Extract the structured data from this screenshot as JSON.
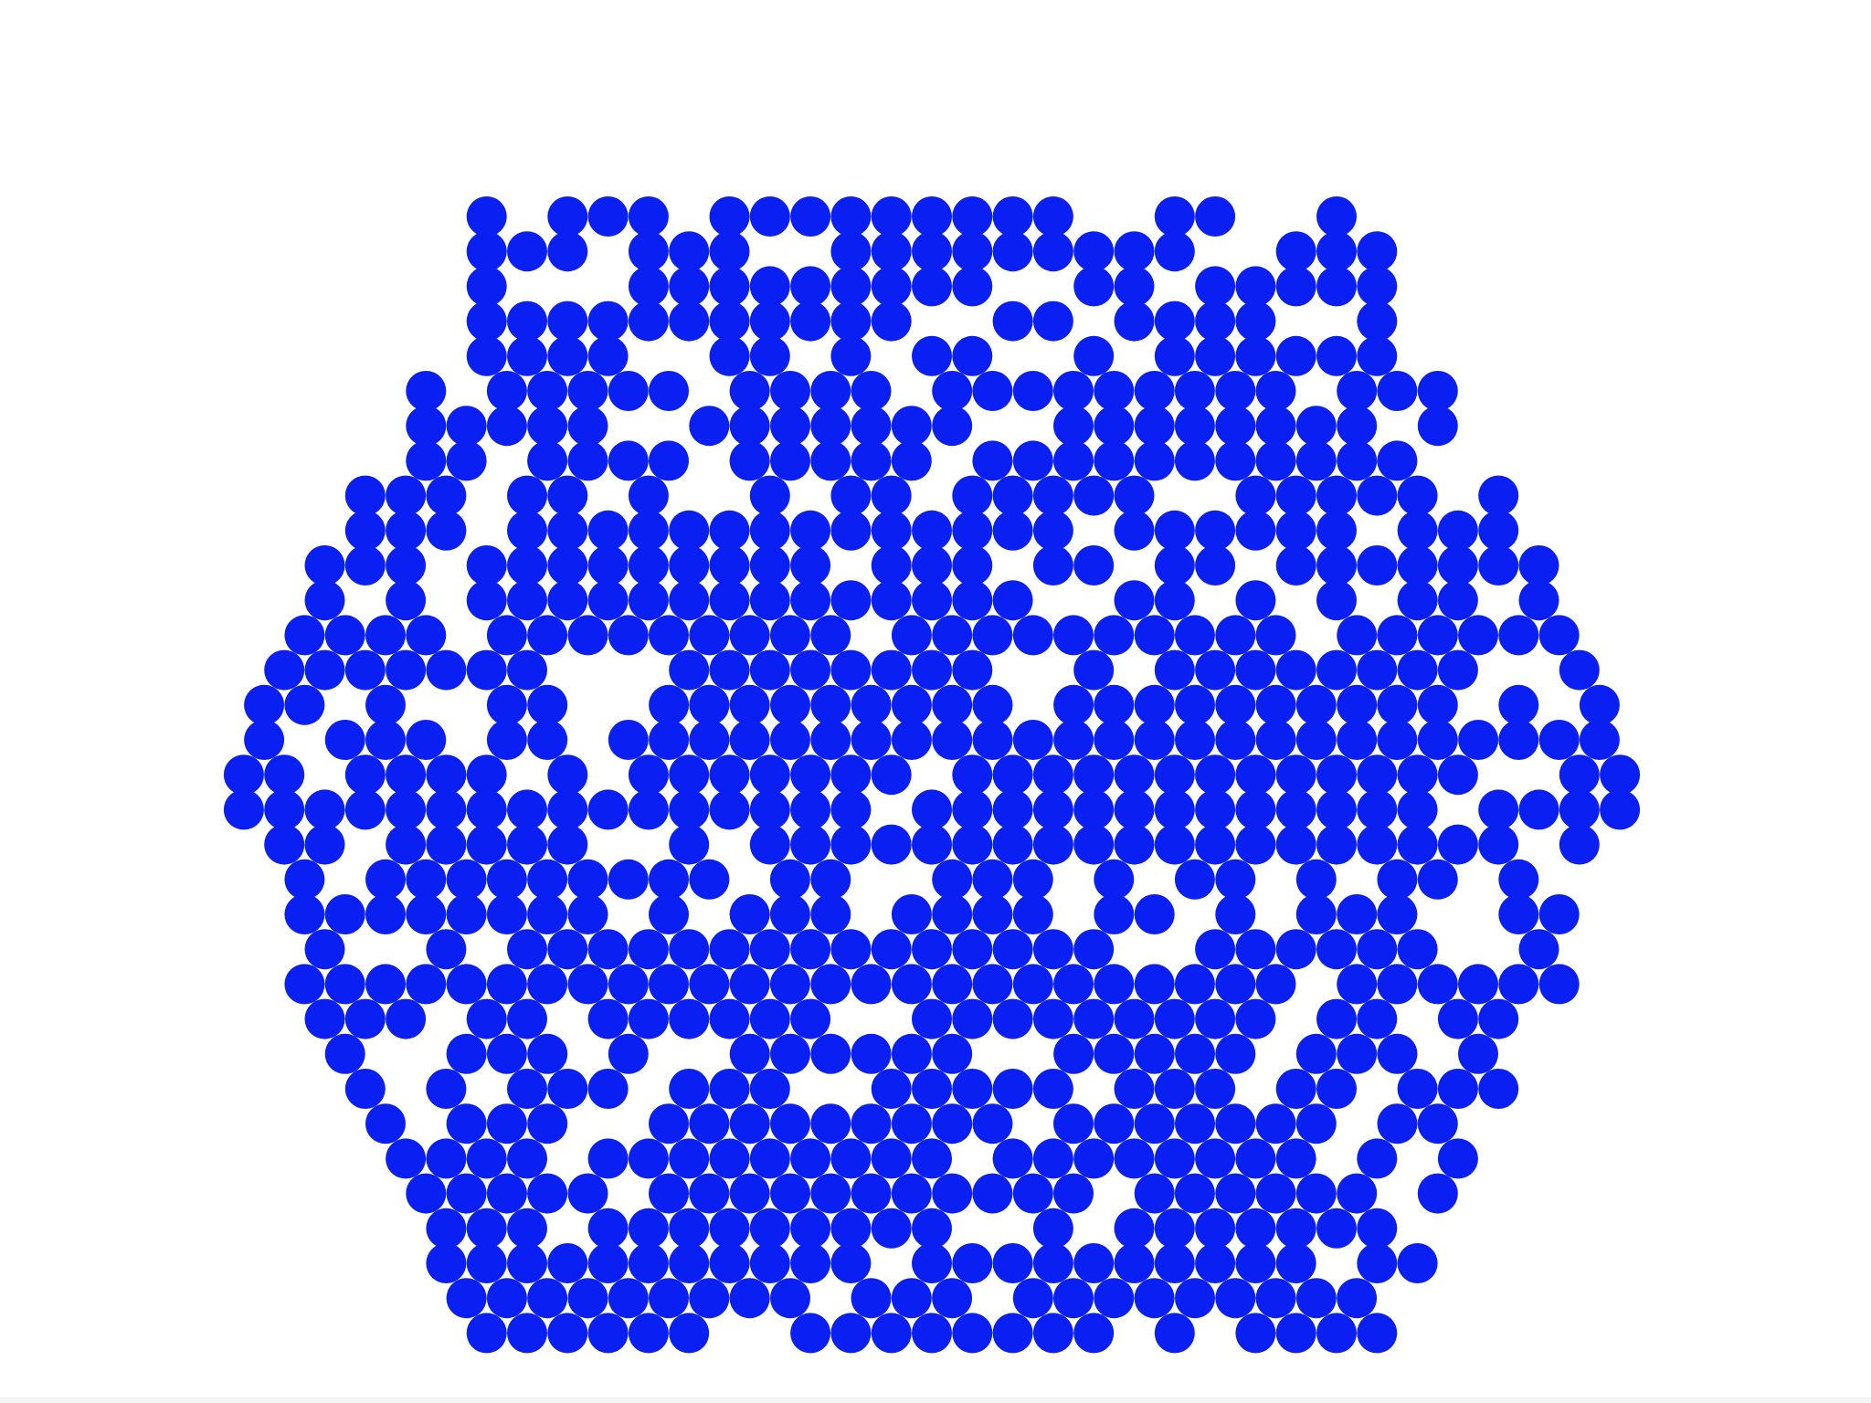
{
  "game": {
    "kind": "hexagonal-lattice-board",
    "cell_state_colors": {
      "occupied": "#0a1ff2",
      "empty": "#ffffff"
    },
    "background": "#ffffff",
    "rows": [
      "#.###.#########..##..#.",
      "###.###..#########..###",
      "#...#########..##.#####",
      "###########..##.####..#",
      "####..##.#.##..#.######",
      "#.#####.####.#########.###",
      "#####..#######..########.#",
      "##.####.#####.###########.",
      "###.##.#..#.##.#####..#####.#",
      "###.##############.######.###",
      "###.#########.###.##.##.#######",
      "#.#.##############..##.#.#.##.#",
      "####.#########.##########.######",
      "#######...########..#.########..#",
      "##.#..##..#########.##########.#.#",
      "#.###.##.#########################",
      "##.####.#.#######.#############..##",
      "################.#############.####",
      "##.#####..#.###################.#",
      "#.#########.##..###.#.##.#.##.#.",
      "########.#.###.####.##.#.###..##",
      "#..#.###############..######..#",
      "#########################.######",
      "###.##.######..#########.##.##.",
      "#..###.#..######..#####.###.#.",
      "#.#.###.###..#####.###.##.###",
      "#.###..#########.#######.##.",
      "####.#########.########.#.#",
      "#####.###########.######.#",
      "###.#########..#.#######.",
      "###########.##########.##",
      "#########.###.#########.",
      "######..########.#.####"
    ]
  }
}
